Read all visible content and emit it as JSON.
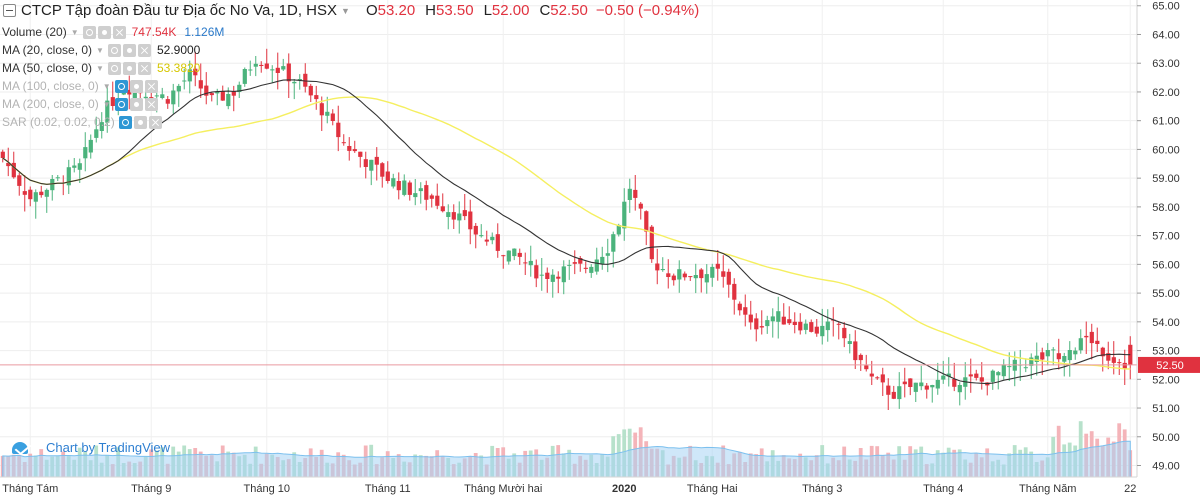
{
  "header": {
    "symbol": "CTCP Tập đoàn Đầu tư Địa ốc No Va, 1D, HSX",
    "open_label": "O",
    "open": "53.20",
    "high_label": "H",
    "high": "53.50",
    "low_label": "L",
    "low": "52.00",
    "close_label": "C",
    "close": "52.50",
    "change": "−0.50 (−0.94%)"
  },
  "indicators": {
    "volume": {
      "name": "Volume (20)",
      "value1": "747.54K",
      "value2": "1.126M"
    },
    "ma20": {
      "name": "MA (20, close, 0)",
      "value": "52.9000"
    },
    "ma50": {
      "name": "MA (50, close, 0)",
      "value": "53.3820"
    },
    "ma100": {
      "name": "MA (100, close, 0)"
    },
    "ma200": {
      "name": "MA (200, close, 0)"
    },
    "sar": {
      "name": "SAR (0.02, 0.02, 0.2)"
    }
  },
  "watermark": {
    "text": "Chart by TradingView"
  },
  "colors": {
    "up": "#4bb37c",
    "down": "#e0323f",
    "vol_up": "#b7e1cb",
    "vol_down": "#f4b4b9",
    "ma20": "#333333",
    "ma50": "#f5ef60",
    "volume_ma": "#a7d4f4",
    "last_price_bg": "#e0323f"
  },
  "chart_data": {
    "type": "candlestick",
    "price_axis": {
      "ylim": [
        48.6,
        65.2
      ],
      "ticks": [
        "49.00",
        "50.00",
        "51.00",
        "52.00",
        "53.00",
        "54.00",
        "55.00",
        "56.00",
        "57.00",
        "58.00",
        "59.00",
        "60.00",
        "61.00",
        "62.00",
        "63.00",
        "64.00",
        "65.00"
      ],
      "last_price": "52.50"
    },
    "time_axis": {
      "labels": [
        {
          "text": "Tháng Tám",
          "index": 5
        },
        {
          "text": "Tháng 9",
          "index": 27
        },
        {
          "text": "Tháng 10",
          "index": 48
        },
        {
          "text": "Tháng 11",
          "index": 70
        },
        {
          "text": "Tháng Mười hai",
          "index": 91
        },
        {
          "text": "2020",
          "index": 113
        },
        {
          "text": "Tháng Hai",
          "index": 129
        },
        {
          "text": "Tháng 3",
          "index": 149
        },
        {
          "text": "Tháng 4",
          "index": 171
        },
        {
          "text": "Tháng Năm",
          "index": 190
        },
        {
          "text": "22",
          "index": 205
        }
      ]
    },
    "ohlc": [],
    "volume": [],
    "ma20": [],
    "ma50": []
  }
}
